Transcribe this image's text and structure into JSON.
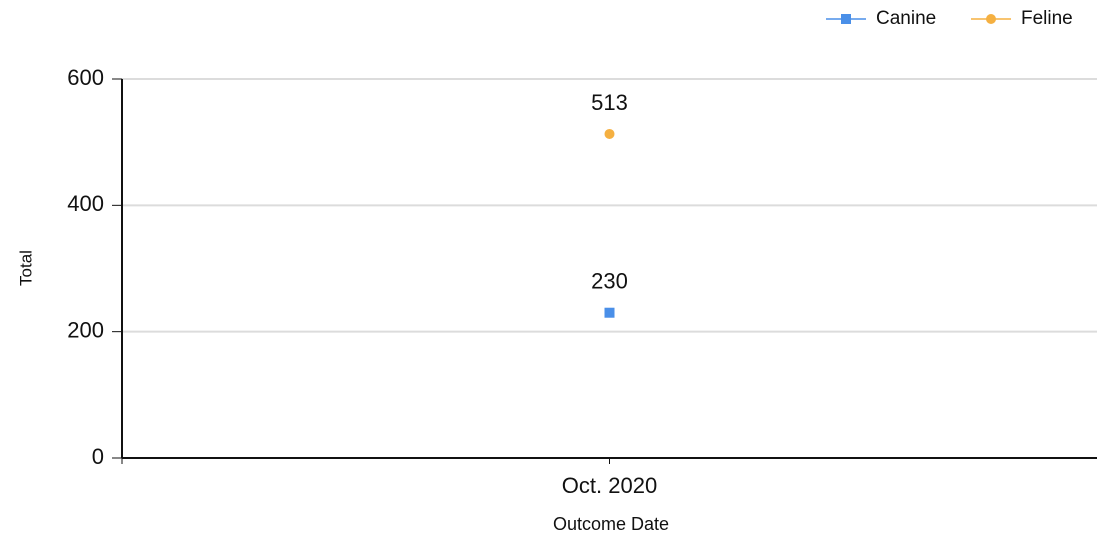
{
  "chart_data": {
    "type": "line",
    "x_label": "Outcome Date",
    "y_label": "Total",
    "categories": [
      "Oct. 2020"
    ],
    "series": [
      {
        "name": "Canine",
        "color": "#4a8fe8",
        "marker": "square",
        "values": [
          230
        ]
      },
      {
        "name": "Feline",
        "color": "#f5b041",
        "marker": "circle",
        "values": [
          513
        ]
      }
    ],
    "ylim": [
      0,
      600
    ],
    "yticks": [
      0,
      200,
      400,
      600
    ],
    "grid": true,
    "legend": "top-right"
  }
}
